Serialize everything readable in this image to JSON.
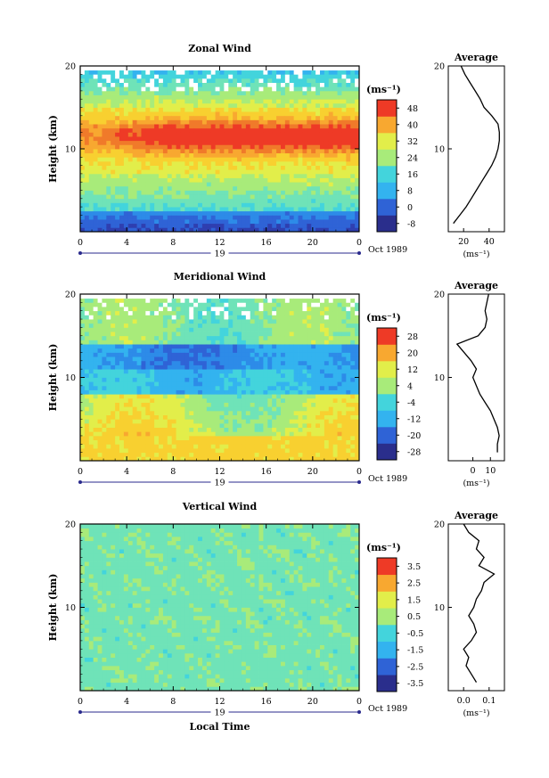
{
  "chart_data": [
    {
      "type": "heatmap",
      "title": "Zonal Wind",
      "ylabel": "Height (km)",
      "ylim": [
        0,
        20
      ],
      "yticks": [
        "10",
        "20"
      ],
      "xticks": [
        "0",
        "4",
        "8",
        "12",
        "16",
        "20",
        "0"
      ],
      "xlim": [
        0,
        24
      ],
      "day_label": "19",
      "date_label": "Oct 1989",
      "colorbar": {
        "unit": "(ms⁻¹)",
        "ticks": [
          "-8",
          "0",
          "8",
          "16",
          "24",
          "32",
          "40",
          "48"
        ],
        "range": [
          -12,
          52
        ]
      },
      "profile": {
        "title": "Average",
        "xlabel": "(ms⁻¹)",
        "xticks": [
          "20",
          "40"
        ],
        "xlim": [
          8,
          52
        ],
        "yticks": [
          "10",
          "20"
        ],
        "heights": [
          1,
          2,
          3,
          4,
          5,
          6,
          7,
          8,
          9,
          10,
          11,
          12,
          13,
          14,
          15,
          16,
          17,
          18,
          19,
          20
        ],
        "values": [
          12,
          17,
          22,
          26,
          30,
          34,
          38,
          42,
          45,
          47,
          48,
          48,
          47,
          42,
          36,
          33,
          29,
          25,
          21,
          18
        ]
      }
    },
    {
      "type": "heatmap",
      "title": "Meridional Wind",
      "ylabel": "Height (km)",
      "ylim": [
        0,
        20
      ],
      "yticks": [
        "10",
        "20"
      ],
      "xticks": [
        "0",
        "4",
        "8",
        "12",
        "16",
        "20",
        "0"
      ],
      "xlim": [
        0,
        24
      ],
      "day_label": "19",
      "date_label": "Oct 1989",
      "colorbar": {
        "unit": "(ms⁻¹)",
        "ticks": [
          "-28",
          "-20",
          "-12",
          "-4",
          "4",
          "12",
          "20",
          "28"
        ],
        "range": [
          -32,
          32
        ]
      },
      "profile": {
        "title": "Average",
        "xlabel": "(ms⁻¹)",
        "xticks": [
          "0",
          "10"
        ],
        "xlim": [
          -14,
          18
        ],
        "yticks": [
          "10",
          "20"
        ],
        "heights": [
          1,
          2,
          3,
          4,
          5,
          6,
          7,
          8,
          9,
          10,
          11,
          12,
          13,
          14,
          15,
          16,
          17,
          18,
          19,
          20
        ],
        "values": [
          14,
          14,
          15,
          14,
          12,
          10,
          7,
          4,
          2,
          0,
          2,
          -1,
          -5,
          -9,
          3,
          7,
          8,
          7,
          8,
          9
        ]
      }
    },
    {
      "type": "heatmap",
      "title": "Vertical Wind",
      "ylabel": "Height (km)",
      "ylim": [
        0,
        20
      ],
      "yticks": [
        "10",
        "20"
      ],
      "xticks": [
        "0",
        "4",
        "8",
        "12",
        "16",
        "20",
        "0"
      ],
      "xlim": [
        0,
        24
      ],
      "xlabel": "Local Time",
      "day_label": "19",
      "date_label": "Oct 1989",
      "colorbar": {
        "unit": "(ms⁻¹)",
        "ticks": [
          "-3.5",
          "-2.5",
          "-1.5",
          "-0.5",
          "0.5",
          "1.5",
          "2.5",
          "3.5"
        ],
        "range": [
          -4,
          4
        ]
      },
      "profile": {
        "title": "Average",
        "xlabel": "(ms⁻¹)",
        "xticks": [
          "0.0",
          "0.1"
        ],
        "xlim": [
          -0.06,
          0.16
        ],
        "yticks": [
          "10",
          "20"
        ],
        "heights": [
          1,
          2,
          3,
          4,
          5,
          6,
          7,
          8,
          9,
          10,
          11,
          12,
          13,
          14,
          15,
          16,
          17,
          18,
          19,
          20
        ],
        "values": [
          0.05,
          0.03,
          0.01,
          0.02,
          0.0,
          0.03,
          0.05,
          0.04,
          0.02,
          0.04,
          0.05,
          0.07,
          0.08,
          0.12,
          0.06,
          0.08,
          0.05,
          0.06,
          0.02,
          0.0
        ]
      }
    }
  ]
}
